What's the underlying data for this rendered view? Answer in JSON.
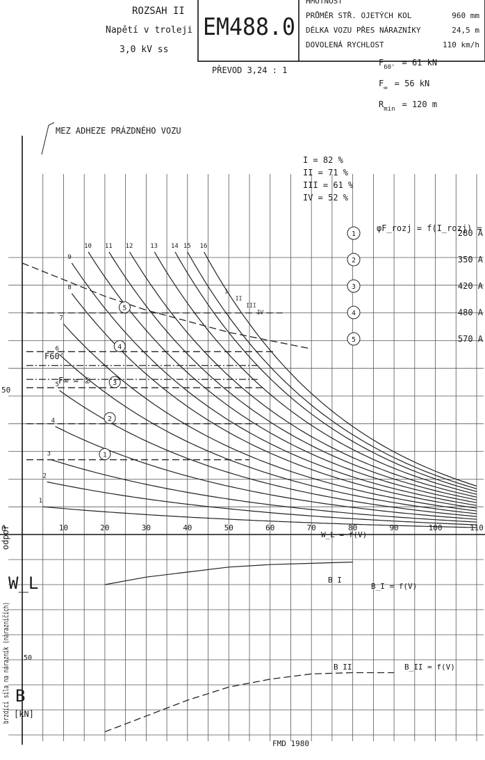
{
  "header": {
    "range_title": "ROZSAH II",
    "voltage_label": "Napětí v troleji",
    "voltage_value": "3,0 kV ss",
    "locomotive": "EM488.0",
    "specs": [
      {
        "label": "HMOTNOST",
        "value": ""
      },
      {
        "label": "PRŮMĚR STŘ. OJETÝCH KOL",
        "value": "960 mm"
      },
      {
        "label": "DÉLKA VOZU PŘES NÁRAZNÍKY",
        "value": "24,5 m"
      },
      {
        "label": "DOVOLENÁ RYCHLOST",
        "value": "110 km/h"
      }
    ],
    "gear_ratio": "PŘEVOD 3,24 : 1",
    "forces": [
      {
        "symbol": "F",
        "sub": "60'",
        "value": "= 61 kN"
      },
      {
        "symbol": "F",
        "sub": "∞",
        "value": "= 56 kN"
      },
      {
        "symbol": "R",
        "sub": "min",
        "value": "= 120 m"
      }
    ]
  },
  "footer": "FMD 1980",
  "chart_data": {
    "type": "line",
    "xlim": [
      0,
      110
    ],
    "x_ticks": [
      10,
      20,
      30,
      40,
      50,
      60,
      70,
      80,
      90,
      100,
      110
    ],
    "upper_ylim": [
      0,
      105
    ],
    "lower_ylim": [
      0,
      75
    ],
    "y_tick_labels": [
      {
        "value": 50,
        "label": "50"
      },
      {
        "value": 0,
        "label": "0"
      }
    ],
    "lower_y_tick": {
      "value": 50,
      "label": "50"
    },
    "adhesion_label": "MEZ ADHEZE PRÁZDNÉHO VOZU",
    "adhesion_limit": {
      "x": [
        0,
        10,
        20,
        30,
        40,
        50,
        60,
        70
      ],
      "y": [
        98,
        92,
        86,
        81,
        77,
        73,
        70,
        67
      ]
    },
    "efficiency_legend": [
      {
        "key": "I",
        "text": "I = 82 %"
      },
      {
        "key": "II",
        "text": "II = 71 %"
      },
      {
        "key": "III",
        "text": "III = 61 %"
      },
      {
        "key": "IV",
        "text": "IV = 52 %"
      }
    ],
    "current_legend_title": "φF_rozj = f(I_rozj) =",
    "current_legend": [
      {
        "id": "1",
        "current": "280 A",
        "force": 27
      },
      {
        "id": "2",
        "current": "350 A",
        "force": 40
      },
      {
        "id": "3",
        "current": "420 A",
        "force": 53
      },
      {
        "id": "4",
        "current": "480 A",
        "force": 66
      },
      {
        "id": "5",
        "current": "570 A",
        "force": 80
      }
    ],
    "wl_label": "W_L = f(V)",
    "b1_label": "B I",
    "b1_formula": "B_I = f(V)",
    "b2_label": "B II",
    "b2_formula": "B_II = f(V)",
    "f60_label": "F60'",
    "finf_label": "F∞ = ②",
    "roman_markers": [
      "I",
      "II",
      "III",
      "IV"
    ],
    "left_axis_label_top": "odpor",
    "left_axis_symbol_top": "W_L",
    "left_axis_label_bottom": "brzdící síla na nárazník (nárazníčích)",
    "left_axis_symbol_bottom": "B",
    "left_axis_unit": "[kN]",
    "step_curves": [
      {
        "step": "1",
        "v0": 5,
        "f0": 10,
        "fe": 2.5
      },
      {
        "step": "2",
        "v0": 6,
        "f0": 19,
        "fe": 3.5
      },
      {
        "step": "3",
        "v0": 7,
        "f0": 27,
        "fe": 4.5
      },
      {
        "step": "4",
        "v0": 8,
        "f0": 39,
        "fe": 5.5
      },
      {
        "step": "5",
        "v0": 9,
        "f0": 52,
        "fe": 6.5
      },
      {
        "step": "6",
        "v0": 9,
        "f0": 65,
        "fe": 7.5
      },
      {
        "step": "7",
        "v0": 10,
        "f0": 76,
        "fe": 8.5
      },
      {
        "step": "8",
        "v0": 12,
        "f0": 87,
        "fe": 9.5
      },
      {
        "step": "9",
        "v0": 12,
        "f0": 98,
        "fe": 10.5
      },
      {
        "step": "10",
        "v0": 16,
        "f0": 102,
        "fe": 11.5
      },
      {
        "step": "11",
        "v0": 21,
        "f0": 102,
        "fe": 12.5
      },
      {
        "step": "12",
        "v0": 26,
        "f0": 102,
        "fe": 13.5
      },
      {
        "step": "13",
        "v0": 32,
        "f0": 102,
        "fe": 14.5
      },
      {
        "step": "14",
        "v0": 37,
        "f0": 102,
        "fe": 15.5
      },
      {
        "step": "15",
        "v0": 40,
        "f0": 102,
        "fe": 16.5
      },
      {
        "step": "16",
        "v0": 44,
        "f0": 102,
        "fe": 17.5
      }
    ],
    "resistance_BI": {
      "x": [
        20,
        30,
        40,
        50,
        60,
        70,
        80
      ],
      "y": [
        70,
        67,
        65,
        63,
        62,
        61.5,
        61
      ]
    },
    "brake_BII": {
      "x": [
        20,
        30,
        40,
        50,
        60,
        70,
        80,
        90
      ],
      "y": [
        75,
        69,
        63,
        58,
        55,
        53,
        52.5,
        52.5
      ]
    }
  }
}
